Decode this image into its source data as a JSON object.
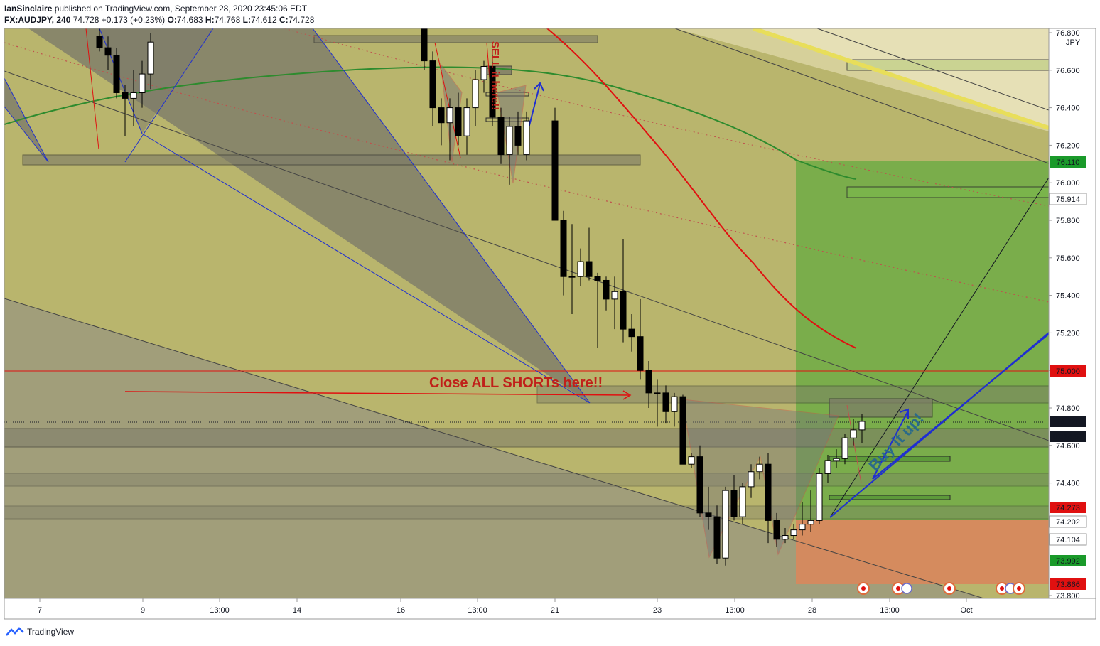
{
  "header": {
    "author": "IanSinclaire",
    "published": " published on TradingView.com, September 28, 2020 23:45:06 EDT",
    "symbol": "FX:AUDJPY, 240",
    "last": "74.728",
    "change": "+0.173 (+0.23%)",
    "o": "74.683",
    "h": "74.768",
    "l": "74.612",
    "c": "74.728"
  },
  "footer": {
    "brand": "TradingView"
  },
  "colors": {
    "bg_yellow": "#b8b46a",
    "bg_grey": "#9a9a80",
    "green_zone": "#6aa842",
    "red_zone": "#d98a5a",
    "ma_green": "#2e8b2e",
    "ma_red": "#e01010",
    "pattern_grey": "#6e6e6e",
    "blue": "#1f2fd0",
    "annotation_red": "#c0201a"
  },
  "chart_data": {
    "type": "candlestick",
    "title": "",
    "currency": "JPY",
    "ylim": [
      73.8,
      76.8
    ],
    "y_ticks": [
      "76.800",
      "76.600",
      "76.400",
      "76.200",
      "76.000",
      "75.800",
      "75.600",
      "75.400",
      "75.200",
      "75.000",
      "74.800",
      "74.600",
      "74.400",
      "74.200",
      "73.800"
    ],
    "x_ticks": [
      "7",
      "9",
      "13:00",
      "14",
      "16",
      "13:00",
      "21",
      "23",
      "13:00",
      "28",
      "13:00",
      "Oct"
    ],
    "price_labels": [
      {
        "value": "76.110",
        "color": "#1a9a2a"
      },
      {
        "value": "75.914",
        "color": "#131722"
      },
      {
        "value": "75.000",
        "color": "#e01010"
      },
      {
        "value": "74.728",
        "color": "#131722"
      },
      {
        "value": "01:14:57",
        "color": "#131722"
      },
      {
        "value": "74.273",
        "color": "#e01010"
      },
      {
        "value": "74.202",
        "color": "#131722"
      },
      {
        "value": "74.104",
        "color": "#131722"
      },
      {
        "value": "73.992",
        "color": "#1a9a2a"
      },
      {
        "value": "73.866",
        "color": "#e01010"
      }
    ],
    "annotations": [
      "Close ALL SHORTs here!!",
      "Buy it up!",
      "SELL it here!!"
    ],
    "candles": [
      {
        "o": 76.78,
        "h": 76.85,
        "l": 76.7,
        "c": 76.72
      },
      {
        "o": 76.72,
        "h": 76.78,
        "l": 76.6,
        "c": 76.68
      },
      {
        "o": 76.68,
        "h": 76.72,
        "l": 76.45,
        "c": 76.48
      },
      {
        "o": 76.48,
        "h": 76.52,
        "l": 76.25,
        "c": 76.45
      },
      {
        "o": 76.45,
        "h": 76.6,
        "l": 76.3,
        "c": 76.48
      },
      {
        "o": 76.48,
        "h": 76.65,
        "l": 76.4,
        "c": 76.58
      },
      {
        "o": 76.58,
        "h": 76.8,
        "l": 76.5,
        "c": 76.75
      },
      {
        "o": 76.85,
        "h": 76.9,
        "l": 76.6,
        "c": 76.65
      },
      {
        "o": 76.65,
        "h": 76.7,
        "l": 76.3,
        "c": 76.4
      },
      {
        "o": 76.4,
        "h": 76.45,
        "l": 76.2,
        "c": 76.32
      },
      {
        "o": 76.32,
        "h": 76.45,
        "l": 76.12,
        "c": 76.4
      },
      {
        "o": 76.4,
        "h": 76.48,
        "l": 76.2,
        "c": 76.25
      },
      {
        "o": 76.25,
        "h": 76.45,
        "l": 76.15,
        "c": 76.4
      },
      {
        "o": 76.4,
        "h": 76.6,
        "l": 76.3,
        "c": 76.55
      },
      {
        "o": 76.55,
        "h": 76.65,
        "l": 76.48,
        "c": 76.62
      },
      {
        "o": 76.62,
        "h": 76.68,
        "l": 76.3,
        "c": 76.35
      },
      {
        "o": 76.35,
        "h": 76.4,
        "l": 76.1,
        "c": 76.15
      },
      {
        "o": 76.15,
        "h": 76.35,
        "l": 75.99,
        "c": 76.3
      },
      {
        "o": 76.3,
        "h": 76.38,
        "l": 76.15,
        "c": 76.2
      },
      {
        "o": 76.15,
        "h": 76.38,
        "l": 76.12,
        "c": 76.33
      },
      {
        "o": 76.33,
        "h": 76.4,
        "l": 75.8,
        "c": 75.8
      },
      {
        "o": 75.8,
        "h": 75.85,
        "l": 75.4,
        "c": 75.5
      },
      {
        "o": 75.5,
        "h": 75.78,
        "l": 75.3,
        "c": 75.5
      },
      {
        "o": 75.5,
        "h": 75.65,
        "l": 75.45,
        "c": 75.58
      },
      {
        "o": 75.58,
        "h": 75.76,
        "l": 75.48,
        "c": 75.5
      },
      {
        "o": 75.5,
        "h": 75.52,
        "l": 75.12,
        "c": 75.48
      },
      {
        "o": 75.48,
        "h": 75.5,
        "l": 75.32,
        "c": 75.38
      },
      {
        "o": 75.38,
        "h": 75.5,
        "l": 75.22,
        "c": 75.42
      },
      {
        "o": 75.42,
        "h": 75.7,
        "l": 75.15,
        "c": 75.22
      },
      {
        "o": 75.22,
        "h": 75.3,
        "l": 75.1,
        "c": 75.18
      },
      {
        "o": 75.18,
        "h": 75.38,
        "l": 74.95,
        "c": 75.0
      },
      {
        "o": 75.0,
        "h": 75.05,
        "l": 74.8,
        "c": 74.88
      },
      {
        "o": 74.88,
        "h": 74.95,
        "l": 74.7,
        "c": 74.88
      },
      {
        "o": 74.88,
        "h": 74.92,
        "l": 74.72,
        "c": 74.78
      },
      {
        "o": 74.78,
        "h": 74.88,
        "l": 74.7,
        "c": 74.86
      },
      {
        "o": 74.86,
        "h": 74.87,
        "l": 74.52,
        "c": 74.5
      },
      {
        "o": 74.5,
        "h": 74.56,
        "l": 74.48,
        "c": 74.54
      },
      {
        "o": 74.54,
        "h": 74.6,
        "l": 74.22,
        "c": 74.24
      },
      {
        "o": 74.24,
        "h": 74.38,
        "l": 74.15,
        "c": 74.22
      },
      {
        "o": 74.22,
        "h": 74.28,
        "l": 73.97,
        "c": 74.0
      },
      {
        "o": 74.0,
        "h": 74.38,
        "l": 73.96,
        "c": 74.36
      },
      {
        "o": 74.36,
        "h": 74.44,
        "l": 74.2,
        "c": 74.22
      },
      {
        "o": 74.22,
        "h": 74.4,
        "l": 74.18,
        "c": 74.38
      },
      {
        "o": 74.38,
        "h": 74.5,
        "l": 74.32,
        "c": 74.46
      },
      {
        "o": 74.46,
        "h": 74.54,
        "l": 74.42,
        "c": 74.5
      },
      {
        "o": 74.5,
        "h": 74.56,
        "l": 74.08,
        "c": 74.2
      },
      {
        "o": 74.2,
        "h": 74.24,
        "l": 74.06,
        "c": 74.1
      },
      {
        "o": 74.1,
        "h": 74.16,
        "l": 74.08,
        "c": 74.12
      },
      {
        "o": 74.12,
        "h": 74.18,
        "l": 74.1,
        "c": 74.15
      },
      {
        "o": 74.15,
        "h": 74.3,
        "l": 74.12,
        "c": 74.18
      },
      {
        "o": 74.18,
        "h": 74.36,
        "l": 74.14,
        "c": 74.2
      },
      {
        "o": 74.2,
        "h": 74.48,
        "l": 74.18,
        "c": 74.45
      },
      {
        "o": 74.45,
        "h": 74.55,
        "l": 74.4,
        "c": 74.52
      },
      {
        "o": 74.52,
        "h": 74.58,
        "l": 74.48,
        "c": 74.53
      },
      {
        "o": 74.53,
        "h": 74.66,
        "l": 74.5,
        "c": 74.64
      },
      {
        "o": 74.64,
        "h": 74.74,
        "l": 74.6,
        "c": 74.683
      },
      {
        "o": 74.683,
        "h": 74.768,
        "l": 74.612,
        "c": 74.728
      }
    ]
  }
}
